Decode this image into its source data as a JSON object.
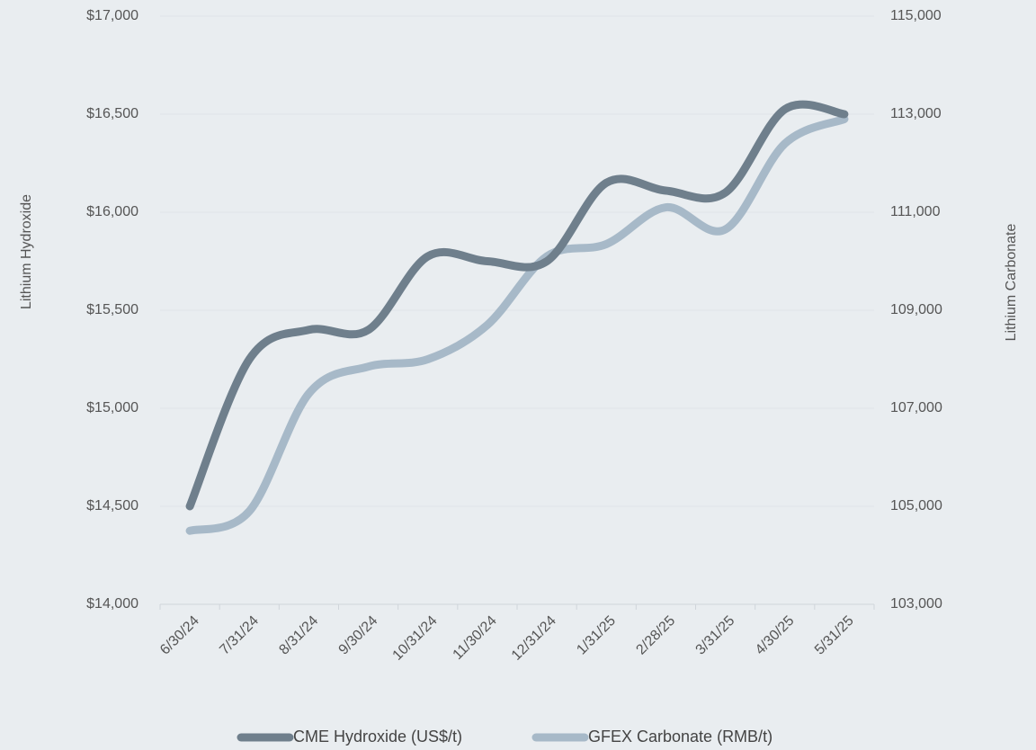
{
  "chart_data": {
    "type": "line",
    "ylabel": "Lithium Hydroxide",
    "y2label": "Lithium Carbonate",
    "categories": [
      "6/30/24",
      "7/31/24",
      "8/31/24",
      "9/30/24",
      "10/31/24",
      "11/30/24",
      "12/31/24",
      "1/31/25",
      "2/28/25",
      "3/31/25",
      "4/30/25",
      "5/31/25"
    ],
    "series": [
      {
        "name": "CME Hydroxide (US$/t)",
        "color": "#6f7f8c",
        "values": [
          14500,
          15250,
          15400,
          15400,
          15775,
          15750,
          15750,
          16150,
          16110,
          16100,
          16525,
          16500
        ]
      },
      {
        "name": "GFEX Carbonate (RMB/t)",
        "color": "#a7b9c8",
        "axis": "y2",
        "values": [
          104500,
          104900,
          107300,
          107850,
          108000,
          108700,
          110100,
          110350,
          111100,
          110650,
          112400,
          112900
        ]
      }
    ],
    "ylim": [
      14000,
      17000
    ],
    "yticks": [
      {
        "value": 14000,
        "label": "$14,000"
      },
      {
        "value": 14500,
        "label": "$14,500"
      },
      {
        "value": 15000,
        "label": "$15,000"
      },
      {
        "value": 15500,
        "label": "$15,500"
      },
      {
        "value": 16000,
        "label": "$16,000"
      },
      {
        "value": 16500,
        "label": "$16,500"
      },
      {
        "value": 17000,
        "label": "$17,000"
      }
    ],
    "y2lim": [
      103000,
      115000
    ],
    "y2ticks": [
      {
        "value": 103000,
        "label": "103,000"
      },
      {
        "value": 105000,
        "label": "105,000"
      },
      {
        "value": 107000,
        "label": "107,000"
      },
      {
        "value": 109000,
        "label": "109,000"
      },
      {
        "value": 111000,
        "label": "111,000"
      },
      {
        "value": 113000,
        "label": "113,000"
      },
      {
        "value": 115000,
        "label": "115,000"
      }
    ],
    "grid": true,
    "legend": "bottom"
  }
}
